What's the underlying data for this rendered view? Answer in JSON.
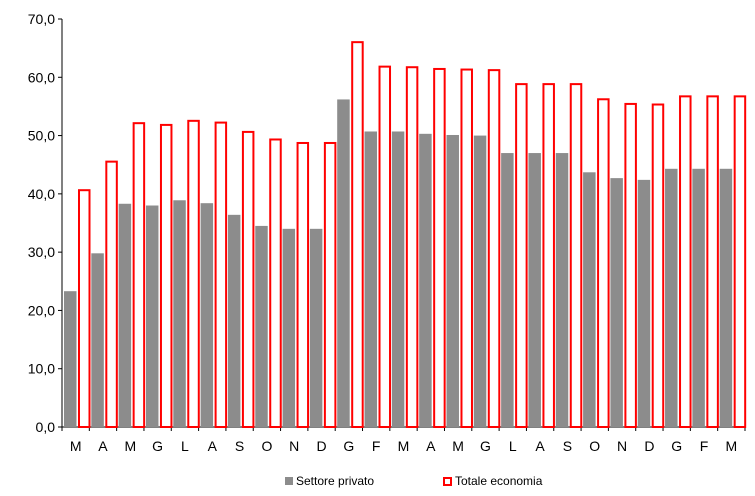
{
  "chart_data": {
    "type": "bar",
    "categories": [
      "M",
      "A",
      "M",
      "G",
      "L",
      "A",
      "S",
      "O",
      "N",
      "D",
      "G",
      "F",
      "M",
      "A",
      "M",
      "G",
      "L",
      "A",
      "S",
      "O",
      "N",
      "D",
      "G",
      "F",
      "M"
    ],
    "series": [
      {
        "name": "Settore privato",
        "color": "#8c8c8c",
        "style": "filled",
        "values": [
          23.3,
          29.8,
          38.3,
          38.0,
          38.9,
          38.4,
          36.4,
          34.5,
          34.0,
          34.0,
          56.2,
          50.7,
          50.7,
          50.3,
          50.1,
          50.0,
          47.0,
          47.0,
          47.0,
          43.7,
          42.7,
          42.4,
          44.3,
          44.3,
          44.3
        ]
      },
      {
        "name": "Totale economia",
        "color": "#ff0000",
        "style": "outline",
        "values": [
          40.8,
          45.7,
          52.3,
          52.0,
          52.7,
          52.4,
          50.8,
          49.5,
          48.9,
          48.9,
          66.2,
          62.0,
          61.9,
          61.6,
          61.5,
          61.4,
          59.0,
          59.0,
          59.0,
          56.4,
          55.6,
          55.5,
          56.9,
          56.9,
          56.9
        ]
      }
    ],
    "ylim": [
      0,
      70
    ],
    "yticks": [
      "0,0",
      "10,0",
      "20,0",
      "30,0",
      "40,0",
      "50,0",
      "60,0",
      "70,0"
    ],
    "grid": false,
    "legend_position": "bottom"
  }
}
